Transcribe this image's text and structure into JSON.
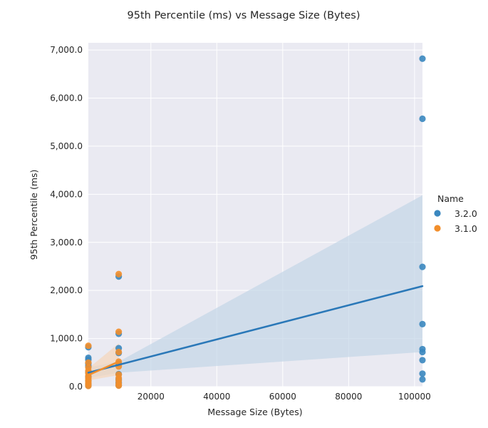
{
  "chart_data": {
    "type": "scatter",
    "title": "95th Percentile (ms) vs Message Size (Bytes)",
    "xlabel": "Message Size (Bytes)",
    "ylabel": "95th Percentile (ms)",
    "xlim": [
      1024,
      102400
    ],
    "ylim": [
      0,
      7150
    ],
    "xticks": [
      20000,
      40000,
      60000,
      80000,
      100000
    ],
    "yticks": [
      0,
      1000,
      2000,
      3000,
      4000,
      5000,
      6000,
      7000
    ],
    "xtick_labels": [
      "20000",
      "40000",
      "60000",
      "80000",
      "100000"
    ],
    "ytick_labels": [
      "0.0",
      "1,000.0",
      "2,000.0",
      "3,000.0",
      "4,000.0",
      "5,000.0",
      "6,000.0",
      "7,000.0"
    ],
    "grid": true,
    "legend": {
      "title": "Name",
      "placement": "right"
    },
    "series": [
      {
        "name": "3.2.0",
        "color": "#3a87bf",
        "line_color": "#2a78b8",
        "band_color": "#c3d6e7",
        "points": [
          [
            102400,
            6820
          ],
          [
            102400,
            5570
          ],
          [
            102400,
            2490
          ],
          [
            102400,
            1300
          ],
          [
            102400,
            780
          ],
          [
            102400,
            720
          ],
          [
            102400,
            550
          ],
          [
            102400,
            270
          ],
          [
            102400,
            150
          ],
          [
            10240,
            2290
          ],
          [
            10240,
            1100
          ],
          [
            10240,
            800
          ],
          [
            10240,
            700
          ],
          [
            10240,
            480
          ],
          [
            10240,
            260
          ],
          [
            10240,
            150
          ],
          [
            10240,
            80
          ],
          [
            10240,
            30
          ],
          [
            1024,
            820
          ],
          [
            1024,
            600
          ],
          [
            1024,
            560
          ],
          [
            1024,
            480
          ],
          [
            1024,
            430
          ],
          [
            1024,
            300
          ],
          [
            1024,
            200
          ],
          [
            1024,
            120
          ],
          [
            1024,
            60
          ],
          [
            1024,
            20
          ]
        ],
        "regression": {
          "line": [
            [
              1024,
              290
            ],
            [
              102400,
              2090
            ]
          ],
          "band_upper": [
            [
              1024,
              400
            ],
            [
              10240,
              520
            ],
            [
              102400,
              3980
            ]
          ],
          "band_lower": [
            [
              1024,
              180
            ],
            [
              10240,
              290
            ],
            [
              102400,
              720
            ]
          ]
        }
      },
      {
        "name": "3.1.0",
        "color": "#f28e2b",
        "line_color": "#f28e2b",
        "band_color": "#f5d6bb",
        "points": [
          [
            10240,
            2340
          ],
          [
            10240,
            1140
          ],
          [
            10240,
            720
          ],
          [
            10240,
            520
          ],
          [
            10240,
            420
          ],
          [
            10240,
            250
          ],
          [
            10240,
            180
          ],
          [
            10240,
            120
          ],
          [
            10240,
            60
          ],
          [
            10240,
            20
          ],
          [
            1024,
            850
          ],
          [
            1024,
            500
          ],
          [
            1024,
            400
          ],
          [
            1024,
            330
          ],
          [
            1024,
            280
          ],
          [
            1024,
            220
          ],
          [
            1024,
            170
          ],
          [
            1024,
            130
          ],
          [
            1024,
            90
          ],
          [
            1024,
            50
          ],
          [
            1024,
            15
          ]
        ],
        "regression": {
          "line": [
            [
              1024,
              240
            ],
            [
              10240,
              520
            ]
          ],
          "band_upper": [
            [
              1024,
              380
            ],
            [
              10240,
              900
            ]
          ],
          "band_lower": [
            [
              1024,
              130
            ],
            [
              10240,
              240
            ]
          ]
        }
      }
    ]
  }
}
